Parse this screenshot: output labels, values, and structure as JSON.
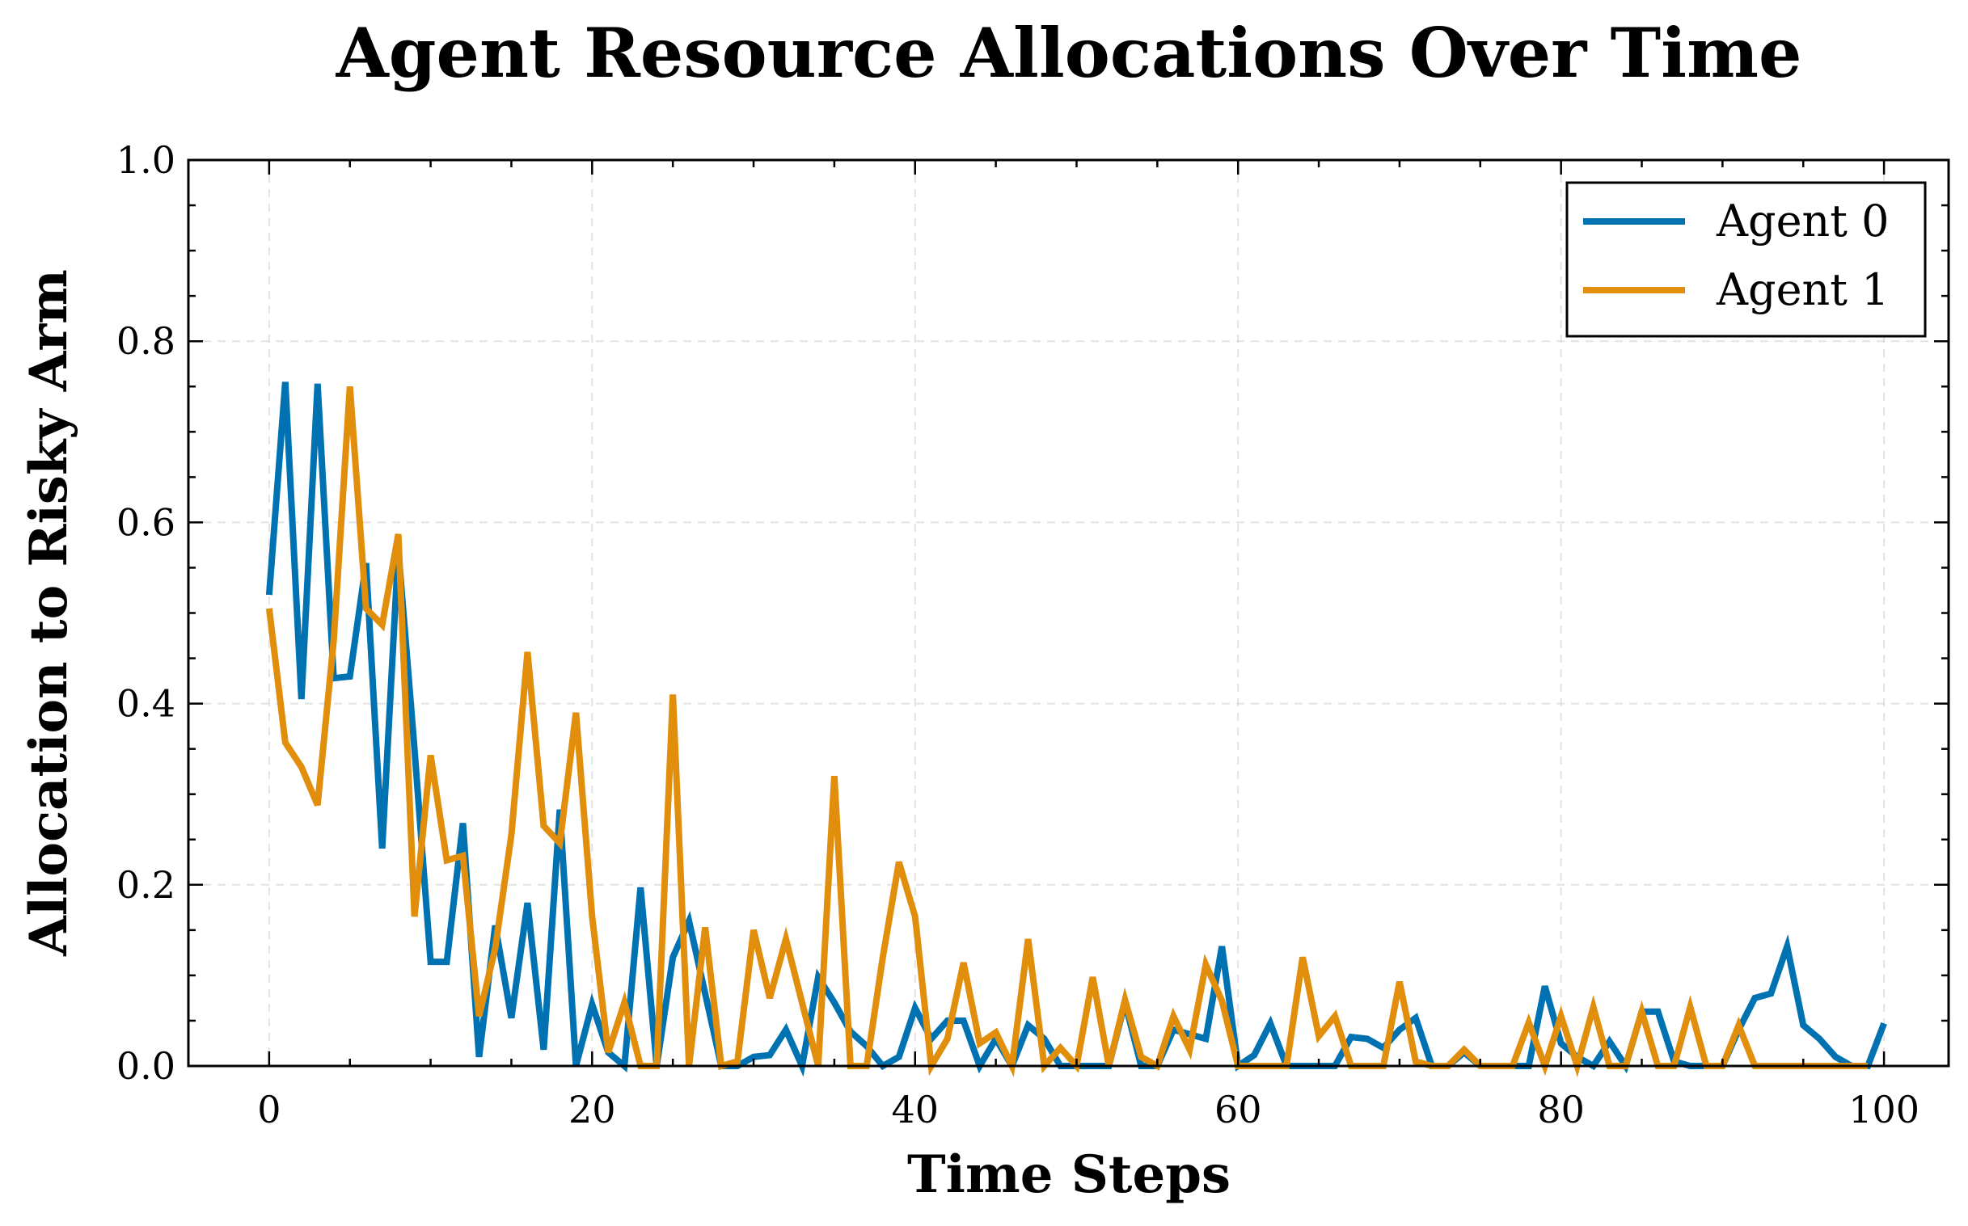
{
  "chart_data": {
    "type": "line",
    "title": "Agent Resource Allocations Over Time",
    "xlabel": "Time Steps",
    "ylabel": "Allocation to Risky Arm",
    "xlim": [
      -5,
      104
    ],
    "ylim": [
      0,
      1
    ],
    "xticks": [
      0,
      20,
      40,
      60,
      80,
      100
    ],
    "yticks": [
      0.0,
      0.2,
      0.4,
      0.6,
      0.8,
      1.0
    ],
    "xtick_labels": [
      "0",
      "20",
      "40",
      "60",
      "80",
      "100"
    ],
    "ytick_labels": [
      "0.0",
      "0.2",
      "0.4",
      "0.6",
      "0.8",
      "1.0"
    ],
    "grid": true,
    "legend": "top-right",
    "series": [
      {
        "name": "Agent 0",
        "color": "#0072B2",
        "values": [
          0.52,
          0.755,
          0.405,
          0.753,
          0.428,
          0.43,
          0.555,
          0.24,
          0.57,
          0.35,
          0.115,
          0.115,
          0.268,
          0.01,
          0.155,
          0.053,
          0.18,
          0.018,
          0.283,
          0.0,
          0.068,
          0.015,
          0.0,
          0.197,
          0.0,
          0.12,
          0.16,
          0.08,
          0.0,
          0.0,
          0.01,
          0.012,
          0.04,
          0.0,
          0.098,
          0.07,
          0.038,
          0.022,
          0.0,
          0.01,
          0.064,
          0.03,
          0.05,
          0.05,
          0.0,
          0.03,
          0.0,
          0.045,
          0.03,
          0.0,
          0.0,
          0.0,
          0.0,
          0.07,
          0.0,
          0.0,
          0.04,
          0.035,
          0.03,
          0.132,
          0.0,
          0.012,
          0.047,
          0.0,
          0.0,
          0.0,
          0.0,
          0.032,
          0.03,
          0.02,
          0.04,
          0.053,
          0.0,
          0.0,
          0.015,
          0.0,
          0.0,
          0.0,
          0.0,
          0.088,
          0.025,
          0.01,
          0.0,
          0.027,
          0.0,
          0.06,
          0.06,
          0.005,
          0.0,
          0.0,
          0.0,
          0.04,
          0.075,
          0.08,
          0.132,
          0.045,
          0.03,
          0.01,
          0.0,
          0.0,
          0.047
        ]
      },
      {
        "name": "Agent 1",
        "color": "#E08E0B",
        "values": [
          0.505,
          0.357,
          0.33,
          0.288,
          0.47,
          0.75,
          0.505,
          0.487,
          0.587,
          0.165,
          0.343,
          0.227,
          0.232,
          0.055,
          0.13,
          0.255,
          0.457,
          0.265,
          0.246,
          0.39,
          0.165,
          0.015,
          0.07,
          0.0,
          0.0,
          0.41,
          0.0,
          0.153,
          0.0,
          0.005,
          0.15,
          0.075,
          0.14,
          0.07,
          0.0,
          0.32,
          0.0,
          0.0,
          0.12,
          0.225,
          0.165,
          0.0,
          0.03,
          0.114,
          0.025,
          0.037,
          0.0,
          0.14,
          0.0,
          0.02,
          0.0,
          0.098,
          0.0,
          0.073,
          0.01,
          0.0,
          0.055,
          0.018,
          0.112,
          0.072,
          0.0,
          0.0,
          0.0,
          0.0,
          0.12,
          0.033,
          0.055,
          0.0,
          0.0,
          0.0,
          0.093,
          0.005,
          0.0,
          0.0,
          0.018,
          0.0,
          0.0,
          0.0,
          0.048,
          0.0,
          0.055,
          0.0,
          0.065,
          0.0,
          0.0,
          0.06,
          0.0,
          0.0,
          0.065,
          0.0,
          0.0,
          0.045,
          0.0,
          0.0,
          0.0,
          0.0,
          0.0,
          0.0,
          0.0,
          0.0
        ]
      }
    ]
  }
}
